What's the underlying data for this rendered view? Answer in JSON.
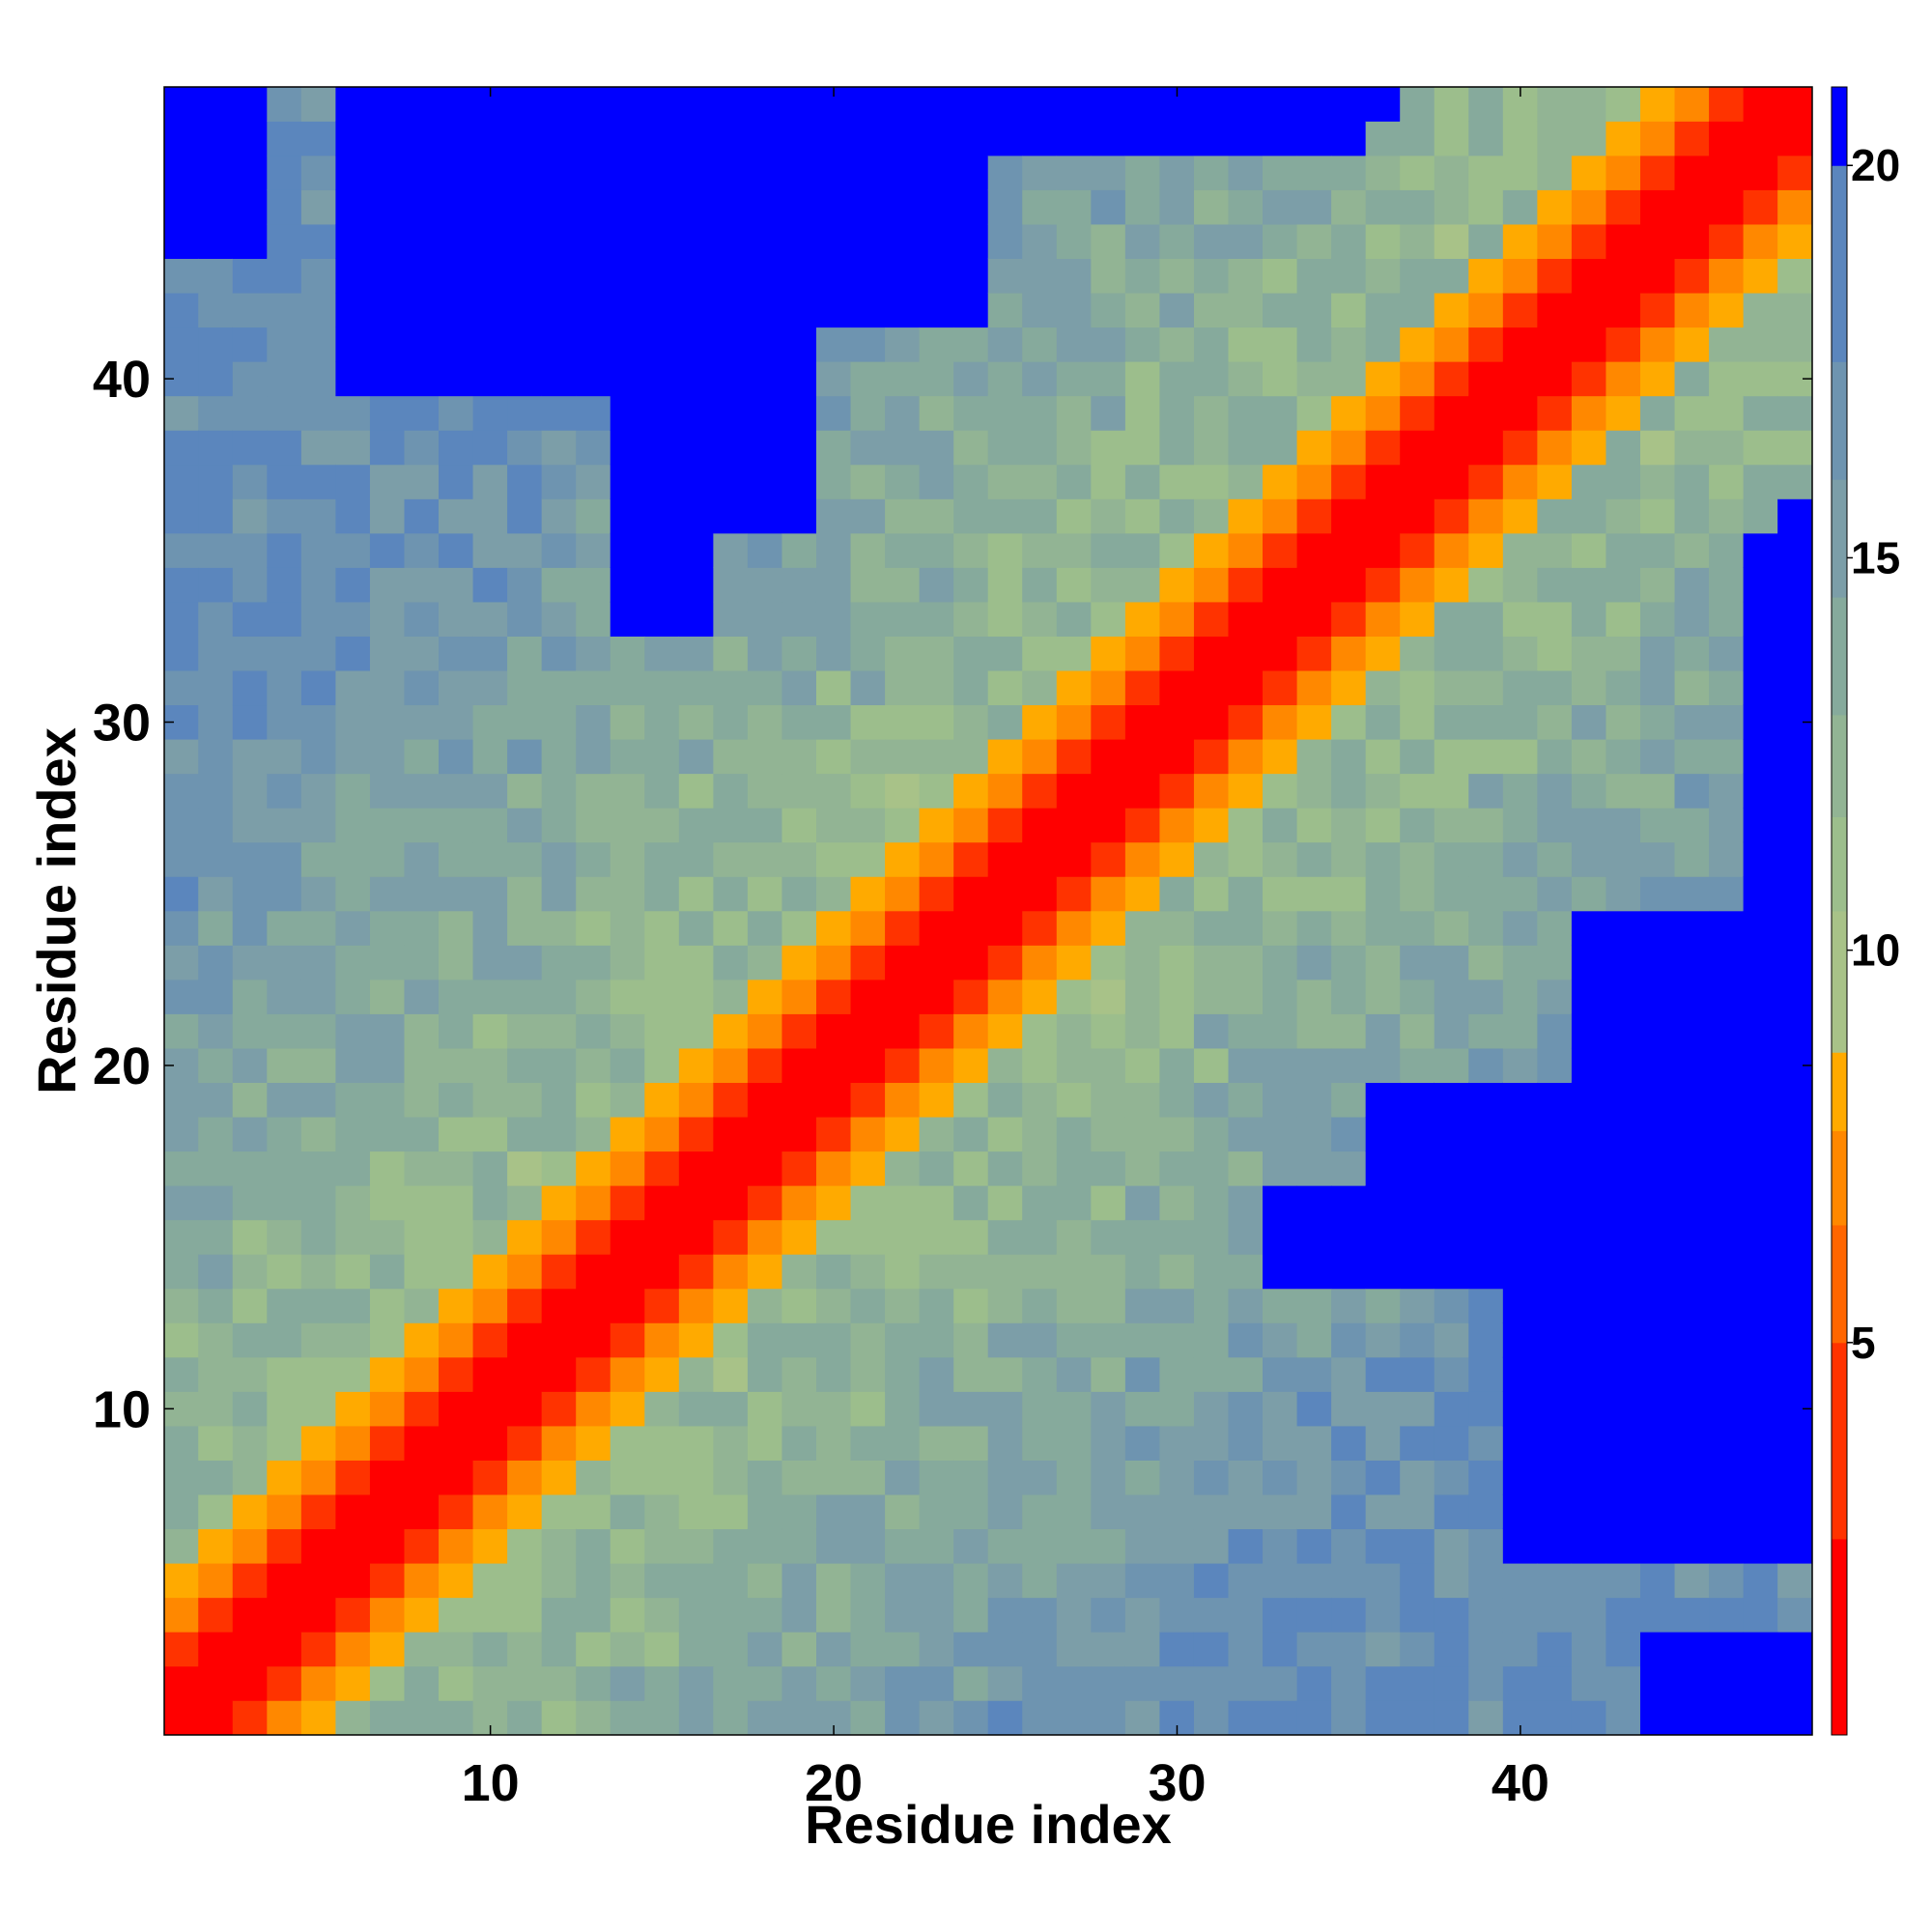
{
  "chart_data": {
    "type": "heatmap",
    "title": "",
    "xlabel": "Residue index",
    "ylabel": "Residue index",
    "x_range": [
      0.5,
      48.5
    ],
    "y_range": [
      0.5,
      48.5
    ],
    "n_residues": 48,
    "x_ticks": [
      10,
      20,
      30,
      40
    ],
    "y_ticks": [
      10,
      20,
      30,
      40
    ],
    "colorbar": {
      "ticks": [
        5,
        10,
        15,
        20
      ],
      "range": [
        0,
        21
      ],
      "levels": [
        {
          "from": 0,
          "to": 2.5,
          "color": "#ff0000"
        },
        {
          "from": 2.5,
          "to": 5,
          "color": "#ff3300"
        },
        {
          "from": 5,
          "to": 6.5,
          "color": "#ff6600"
        },
        {
          "from": 6.5,
          "to": 7.7,
          "color": "#ff8800"
        },
        {
          "from": 7.7,
          "to": 8.7,
          "color": "#ffaa00"
        },
        {
          "from": 8.7,
          "to": 10.5,
          "color": "#a8c288"
        },
        {
          "from": 10.5,
          "to": 11.7,
          "color": "#9cbe8c"
        },
        {
          "from": 11.7,
          "to": 13,
          "color": "#92b494"
        },
        {
          "from": 13,
          "to": 14.5,
          "color": "#86aa9c"
        },
        {
          "from": 14.5,
          "to": 16,
          "color": "#7c9ea8"
        },
        {
          "from": 16,
          "to": 17.5,
          "color": "#6e94b0"
        },
        {
          "from": 17.5,
          "to": 20,
          "color": "#5b86bd"
        },
        {
          "from": 20,
          "to": 21,
          "color": "#0000ff"
        }
      ]
    },
    "colors": {
      "near": "#ff0000",
      "close": "#ff6600",
      "contact": "#ffaa00",
      "mid": "#9cbe8c",
      "far": "#5b86bd",
      "beyond": "#0000ff"
    }
  }
}
